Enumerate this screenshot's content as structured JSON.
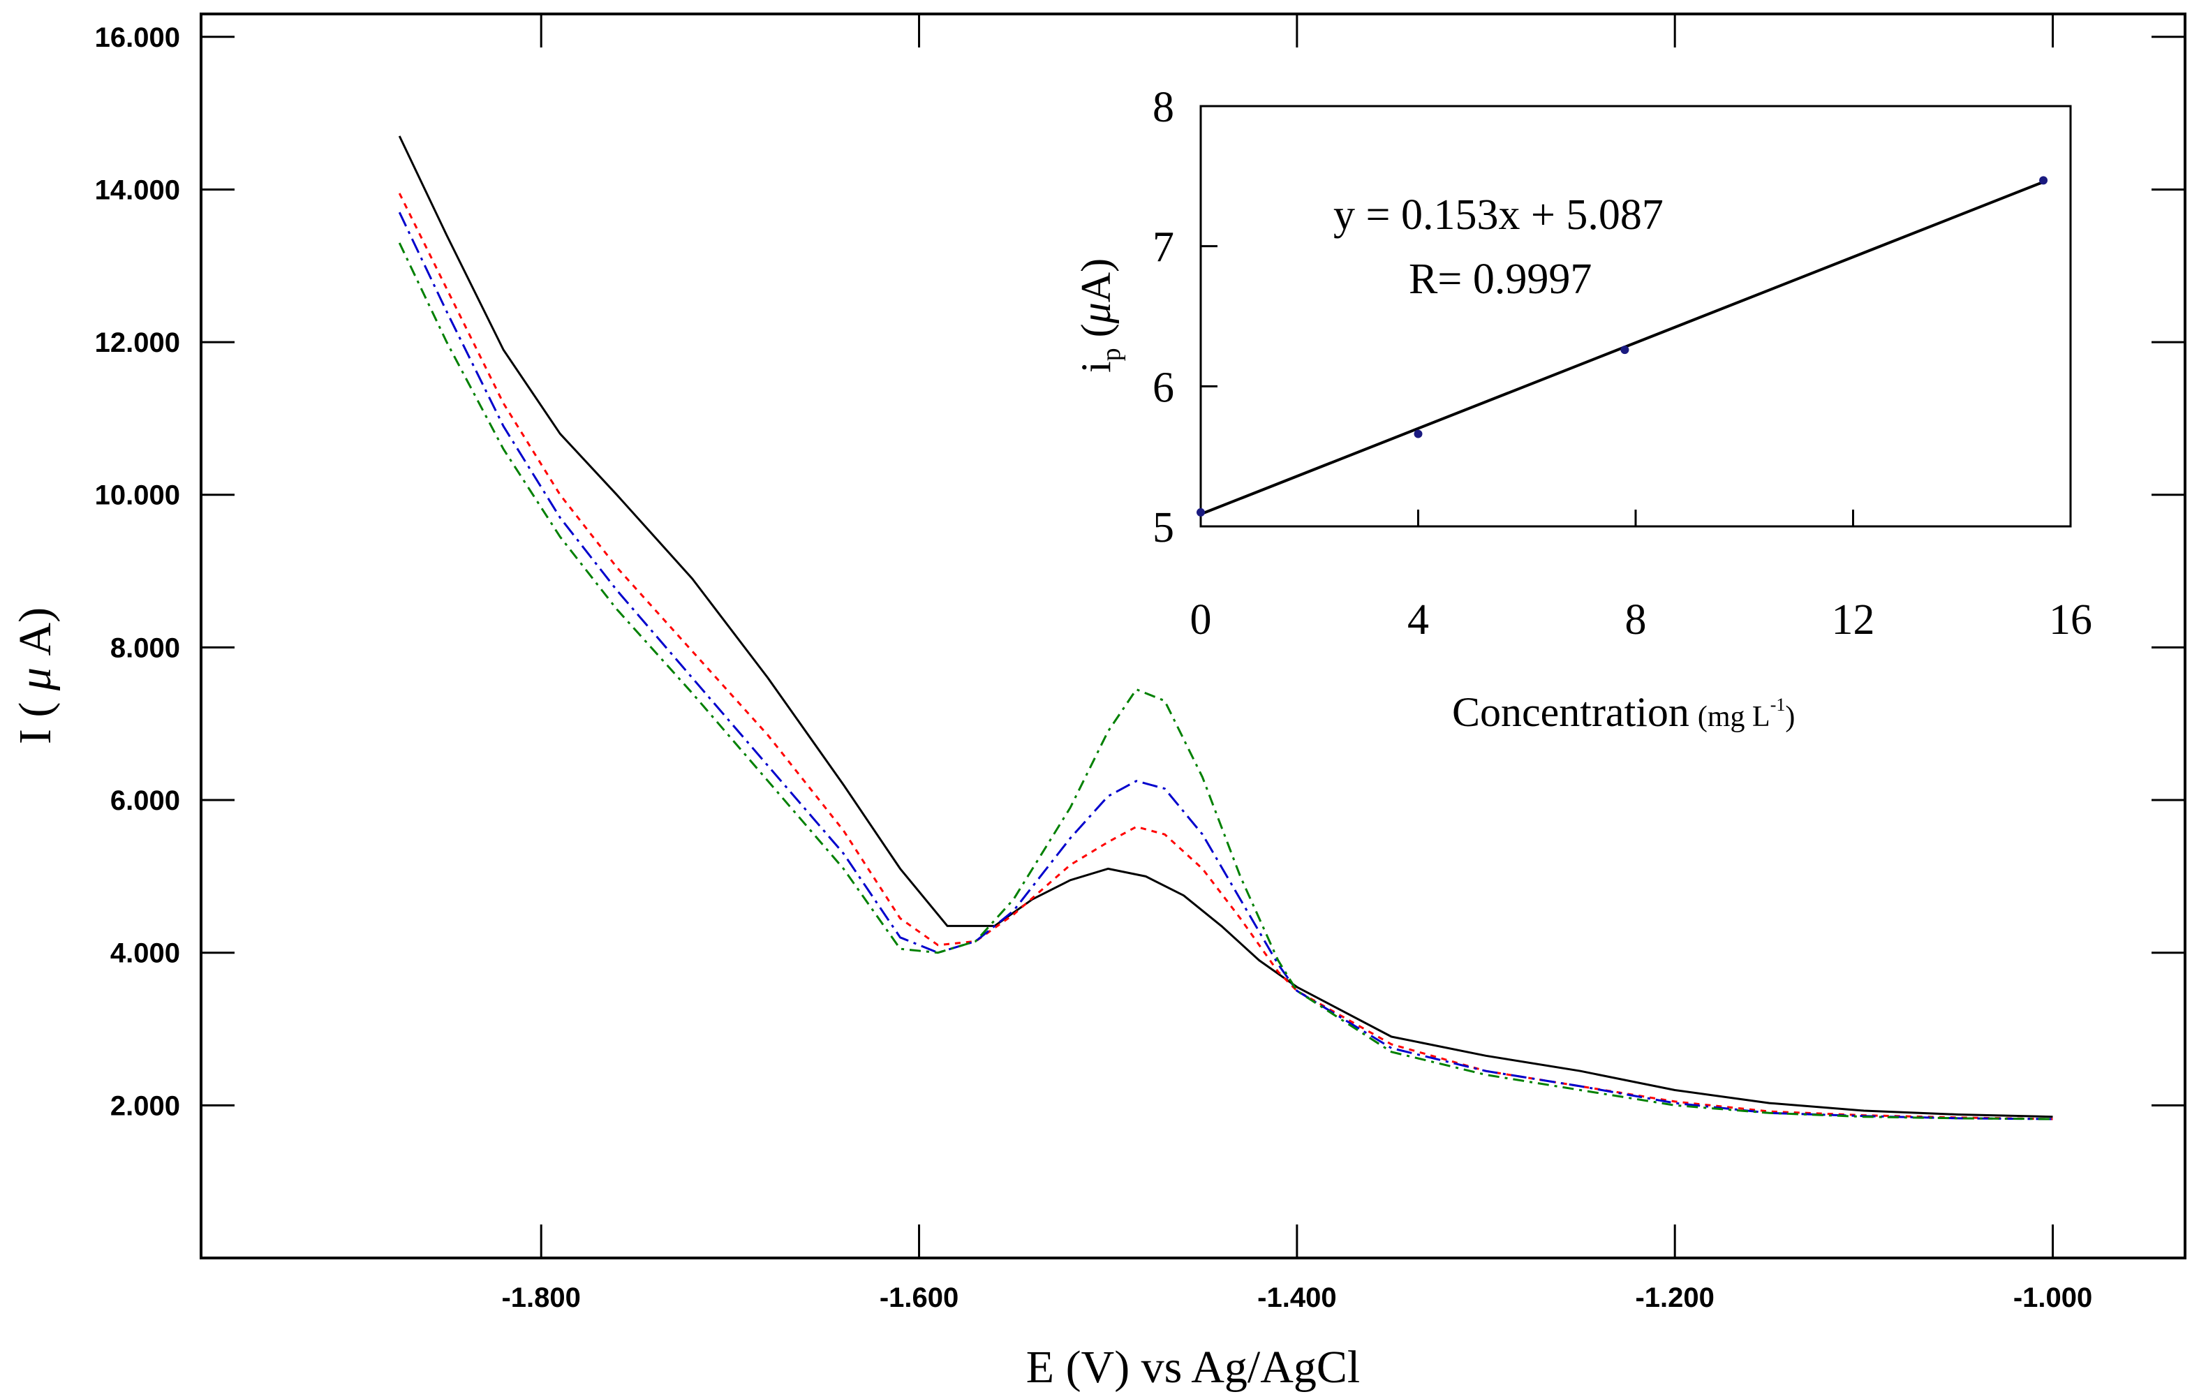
{
  "chart_data": [
    {
      "type": "line",
      "title": "",
      "xlabel": "E (V) vs Ag/AgCl",
      "ylabel_parts": [
        "I ( ",
        "μ",
        " A)"
      ],
      "xlim": [
        -1.98,
        -0.93
      ],
      "ylim": [
        0.0,
        16.3
      ],
      "xticks": [
        -1.8,
        -1.6,
        -1.4,
        -1.2,
        -1.0
      ],
      "xtick_labels": [
        "-1.800",
        "-1.600",
        "-1.400",
        "-1.200",
        "-1.000"
      ],
      "yticks": [
        2,
        4,
        6,
        8,
        10,
        12,
        14,
        16
      ],
      "ytick_labels": [
        "2.000",
        "4.000",
        "6.000",
        "8.000",
        "10.000",
        "12.000",
        "14.000",
        "16.000"
      ],
      "grid": false,
      "series": [
        {
          "name": "black solid",
          "color": "#000000",
          "dash": "none",
          "points": [
            [
              -1.875,
              14.7
            ],
            [
              -1.85,
              13.4
            ],
            [
              -1.82,
              11.9
            ],
            [
              -1.79,
              10.8
            ],
            [
              -1.76,
              10.0
            ],
            [
              -1.72,
              8.9
            ],
            [
              -1.68,
              7.6
            ],
            [
              -1.64,
              6.2
            ],
            [
              -1.61,
              5.1
            ],
            [
              -1.585,
              4.35
            ],
            [
              -1.56,
              4.35
            ],
            [
              -1.54,
              4.7
            ],
            [
              -1.52,
              4.95
            ],
            [
              -1.5,
              5.1
            ],
            [
              -1.48,
              5.0
            ],
            [
              -1.46,
              4.75
            ],
            [
              -1.44,
              4.35
            ],
            [
              -1.42,
              3.9
            ],
            [
              -1.4,
              3.55
            ],
            [
              -1.35,
              2.9
            ],
            [
              -1.3,
              2.65
            ],
            [
              -1.25,
              2.45
            ],
            [
              -1.2,
              2.2
            ],
            [
              -1.15,
              2.03
            ],
            [
              -1.1,
              1.93
            ],
            [
              -1.05,
              1.88
            ],
            [
              -1.0,
              1.85
            ]
          ]
        },
        {
          "name": "red short-dash",
          "color": "#ff0000",
          "dash": "8,8",
          "points": [
            [
              -1.875,
              13.95
            ],
            [
              -1.85,
              12.7
            ],
            [
              -1.82,
              11.2
            ],
            [
              -1.79,
              10.0
            ],
            [
              -1.76,
              9.05
            ],
            [
              -1.72,
              7.95
            ],
            [
              -1.68,
              6.85
            ],
            [
              -1.64,
              5.6
            ],
            [
              -1.61,
              4.45
            ],
            [
              -1.59,
              4.1
            ],
            [
              -1.57,
              4.15
            ],
            [
              -1.55,
              4.5
            ],
            [
              -1.52,
              5.15
            ],
            [
              -1.5,
              5.45
            ],
            [
              -1.485,
              5.65
            ],
            [
              -1.47,
              5.55
            ],
            [
              -1.45,
              5.1
            ],
            [
              -1.43,
              4.45
            ],
            [
              -1.41,
              3.75
            ],
            [
              -1.4,
              3.5
            ],
            [
              -1.35,
              2.8
            ],
            [
              -1.3,
              2.45
            ],
            [
              -1.25,
              2.25
            ],
            [
              -1.2,
              2.05
            ],
            [
              -1.15,
              1.92
            ],
            [
              -1.1,
              1.87
            ],
            [
              -1.05,
              1.84
            ],
            [
              -1.0,
              1.82
            ]
          ]
        },
        {
          "name": "blue long-dash",
          "color": "#0000cc",
          "dash": "22,8,4,8",
          "points": [
            [
              -1.875,
              13.7
            ],
            [
              -1.85,
              12.4
            ],
            [
              -1.82,
              10.9
            ],
            [
              -1.79,
              9.7
            ],
            [
              -1.76,
              8.75
            ],
            [
              -1.72,
              7.6
            ],
            [
              -1.68,
              6.45
            ],
            [
              -1.64,
              5.3
            ],
            [
              -1.61,
              4.2
            ],
            [
              -1.59,
              4.0
            ],
            [
              -1.57,
              4.15
            ],
            [
              -1.55,
              4.55
            ],
            [
              -1.52,
              5.5
            ],
            [
              -1.5,
              6.05
            ],
            [
              -1.485,
              6.25
            ],
            [
              -1.47,
              6.15
            ],
            [
              -1.45,
              5.55
            ],
            [
              -1.43,
              4.7
            ],
            [
              -1.41,
              3.85
            ],
            [
              -1.4,
              3.5
            ],
            [
              -1.35,
              2.75
            ],
            [
              -1.3,
              2.45
            ],
            [
              -1.25,
              2.25
            ],
            [
              -1.2,
              2.03
            ],
            [
              -1.15,
              1.9
            ],
            [
              -1.1,
              1.86
            ],
            [
              -1.05,
              1.83
            ],
            [
              -1.0,
              1.82
            ]
          ]
        },
        {
          "name": "green dash-dot",
          "color": "#008000",
          "dash": "16,8,4,8",
          "points": [
            [
              -1.875,
              13.3
            ],
            [
              -1.85,
              12.0
            ],
            [
              -1.82,
              10.6
            ],
            [
              -1.79,
              9.45
            ],
            [
              -1.76,
              8.5
            ],
            [
              -1.72,
              7.4
            ],
            [
              -1.68,
              6.25
            ],
            [
              -1.64,
              5.1
            ],
            [
              -1.61,
              4.05
            ],
            [
              -1.59,
              4.0
            ],
            [
              -1.57,
              4.15
            ],
            [
              -1.55,
              4.7
            ],
            [
              -1.52,
              5.9
            ],
            [
              -1.5,
              6.9
            ],
            [
              -1.485,
              7.45
            ],
            [
              -1.47,
              7.3
            ],
            [
              -1.45,
              6.3
            ],
            [
              -1.43,
              5.0
            ],
            [
              -1.41,
              3.9
            ],
            [
              -1.4,
              3.5
            ],
            [
              -1.35,
              2.7
            ],
            [
              -1.3,
              2.4
            ],
            [
              -1.25,
              2.2
            ],
            [
              -1.2,
              2.0
            ],
            [
              -1.15,
              1.9
            ],
            [
              -1.1,
              1.85
            ],
            [
              -1.05,
              1.83
            ],
            [
              -1.0,
              1.82
            ]
          ]
        }
      ]
    },
    {
      "type": "scatter",
      "title": "",
      "xlabel": "Concentration",
      "xlabel_unit_parts": [
        "(mg L",
        "-1",
        ")"
      ],
      "ylabel_parts": [
        "i",
        "p",
        " (",
        "μ",
        "A)"
      ],
      "xlim": [
        0,
        16
      ],
      "ylim": [
        5,
        8
      ],
      "xticks": [
        0,
        4,
        8,
        12,
        16
      ],
      "xtick_labels": [
        "0",
        "4",
        "8",
        "12",
        "16"
      ],
      "yticks": [
        5,
        6,
        7,
        8
      ],
      "ytick_labels": [
        "5",
        "6",
        "7",
        "8"
      ],
      "points": [
        [
          0,
          5.1
        ],
        [
          4,
          5.66
        ],
        [
          7.8,
          6.26
        ],
        [
          15.5,
          7.47
        ]
      ],
      "fit": {
        "slope": 0.153,
        "intercept": 5.087,
        "x_range": [
          0,
          15.5
        ]
      },
      "annotations": [
        "y = 0.153x + 5.087",
        "R= 0.9997"
      ],
      "marker_color": "#1a1a80"
    }
  ]
}
